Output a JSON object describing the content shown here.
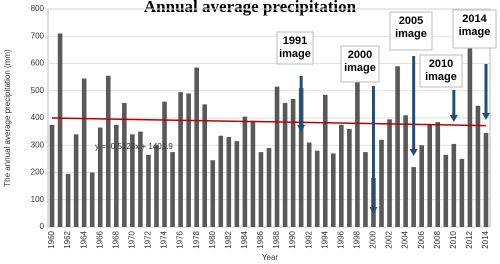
{
  "chart_data": {
    "type": "bar",
    "title": "Annual average precipitation",
    "y_label": "The annual average precipitation (mm)",
    "x_label": "Year",
    "categories": [
      "1960",
      null,
      "1962",
      null,
      "1964",
      null,
      "1966",
      null,
      "1968",
      null,
      "1970",
      null,
      "1972",
      null,
      "1974",
      null,
      "1976",
      null,
      "1978",
      null,
      "1980",
      null,
      "1982",
      null,
      "1984",
      null,
      "1986",
      null,
      "1988",
      null,
      "1990",
      null,
      "1992",
      null,
      "1994",
      null,
      "1996",
      null,
      "1998",
      null,
      "2000",
      null,
      "2002",
      null,
      "2004",
      null,
      "2006",
      null,
      "2008",
      null,
      "2010",
      null,
      "2012",
      null,
      "2014"
    ],
    "values": [
      375,
      710,
      195,
      340,
      545,
      200,
      365,
      555,
      375,
      455,
      340,
      350,
      265,
      300,
      460,
      275,
      495,
      490,
      585,
      450,
      245,
      335,
      330,
      315,
      405,
      390,
      275,
      290,
      515,
      455,
      470,
      510,
      310,
      280,
      485,
      270,
      375,
      360,
      545,
      275,
      180,
      320,
      395,
      590,
      410,
      220,
      300,
      375,
      385,
      265,
      305,
      250,
      670,
      445,
      345
    ],
    "color": "#595959",
    "ylim": [
      0,
      800
    ],
    "yticks": [
      0,
      100,
      200,
      300,
      400,
      500,
      600,
      700,
      800
    ],
    "grid": true,
    "trendline": {
      "start": 400,
      "end": 372,
      "color": "#c00000",
      "equation": "y = -0.5123x + 1401.9"
    },
    "annotations": [
      {
        "lines": [
          "1991",
          "image"
        ]
      },
      {
        "lines": [
          "2000",
          "image"
        ]
      },
      {
        "lines": [
          "2005",
          "image"
        ]
      },
      {
        "lines": [
          "2010",
          "image"
        ]
      },
      {
        "lines": [
          "2014",
          "image"
        ]
      }
    ],
    "arrow_color": "#1f4e79"
  }
}
